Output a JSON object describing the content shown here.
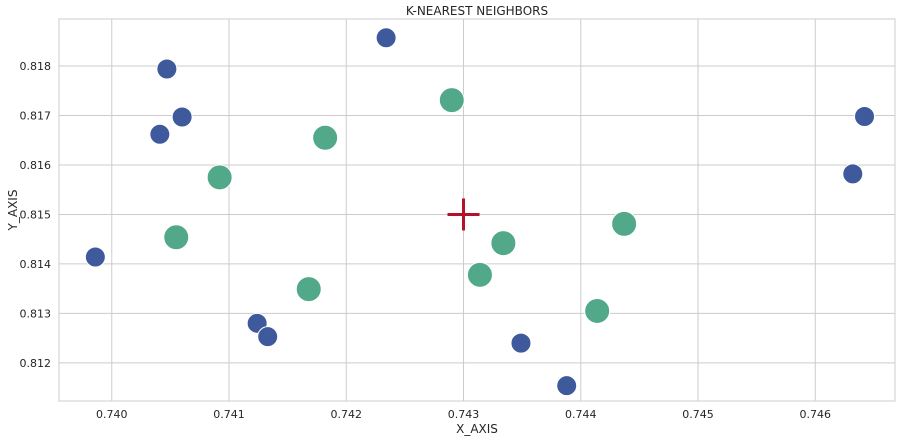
{
  "chart_data": {
    "type": "scatter",
    "title": "K-NEAREST NEIGHBORS",
    "xlabel": "X_AXIS",
    "ylabel": "Y_AXIS",
    "xlim": [
      0.73955,
      0.74668
    ],
    "ylim": [
      0.81123,
      0.81895
    ],
    "xticks": [
      "0.740",
      "0.741",
      "0.742",
      "0.743",
      "0.744",
      "0.745",
      "0.746"
    ],
    "yticks": [
      "0.812",
      "0.813",
      "0.814",
      "0.815",
      "0.816",
      "0.817",
      "0.818"
    ],
    "grid": true,
    "series": [
      {
        "role": "other",
        "color": "#3f5a9c",
        "points": [
          [
            0.74047,
            0.81794
          ],
          [
            0.7406,
            0.81697
          ],
          [
            0.74041,
            0.81662
          ],
          [
            0.73986,
            0.81414
          ],
          [
            0.74234,
            0.81857
          ],
          [
            0.74642,
            0.81698
          ],
          [
            0.74632,
            0.81582
          ],
          [
            0.74124,
            0.8128
          ],
          [
            0.74133,
            0.81253
          ],
          [
            0.74349,
            0.8124
          ],
          [
            0.74388,
            0.81154
          ]
        ]
      },
      {
        "role": "neighbors",
        "color": "#52a98a",
        "points": [
          [
            0.7429,
            0.81731
          ],
          [
            0.74182,
            0.81655
          ],
          [
            0.74092,
            0.81575
          ],
          [
            0.74055,
            0.81454
          ],
          [
            0.74168,
            0.81349
          ],
          [
            0.74334,
            0.81442
          ],
          [
            0.74314,
            0.81378
          ],
          [
            0.74437,
            0.81481
          ],
          [
            0.74414,
            0.81305
          ]
        ]
      }
    ],
    "query_point": {
      "x": 0.743,
      "y": 0.815,
      "marker": "plus",
      "color": "#b5112a"
    }
  }
}
